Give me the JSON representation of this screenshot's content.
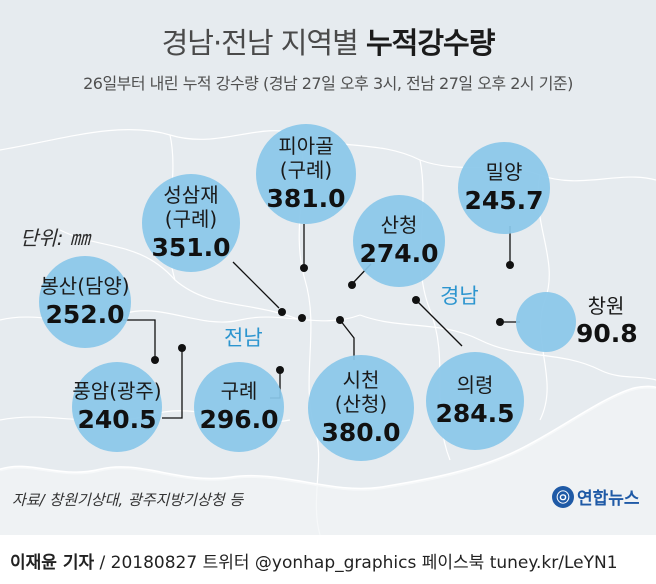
{
  "title": {
    "prefix": "경남·전남 지역별 ",
    "highlight": "누적강수량"
  },
  "subtitle": "26일부터 내린 누적 강수량 (경남 27일 오후 3시, 전남 27일 오후 2시 기준)",
  "unit_label": "단위: ㎜",
  "regions": {
    "jeonnam": "전남",
    "gyeongnam": "경남"
  },
  "stations": [
    {
      "id": "piagol",
      "name": "피아골",
      "sub": "(구례)",
      "value": "381.0"
    },
    {
      "id": "seongsamjae",
      "name": "성삼재",
      "sub": "(구례)",
      "value": "351.0"
    },
    {
      "id": "miryang",
      "name": "밀양",
      "value": "245.7"
    },
    {
      "id": "sancheong",
      "name": "산청",
      "value": "274.0"
    },
    {
      "id": "bongsan",
      "name": "봉산(담양)",
      "value": "252.0"
    },
    {
      "id": "pungam",
      "name": "풍암(광주)",
      "value": "240.5"
    },
    {
      "id": "gurye",
      "name": "구례",
      "value": "296.0"
    },
    {
      "id": "sicheon",
      "name": "시천",
      "sub": "(산청)",
      "value": "380.0"
    },
    {
      "id": "uiryeong",
      "name": "의령",
      "value": "284.5"
    },
    {
      "id": "changwon",
      "name": "창원",
      "value": "90.8"
    }
  ],
  "source": "자료/ 창원기상대, 광주지방기상청 등",
  "logo_text": "연합뉴스",
  "footer": {
    "byline": "이재윤 기자",
    "rest": " / 20180827   트위터 @yonhap_graphics  페이스북 tuney.kr/LeYN1"
  },
  "colors": {
    "bubble": "#8ac7ea",
    "region_label": "#2c95cf",
    "map_land": "#e6ebef",
    "logo": "#1f5aa6"
  }
}
